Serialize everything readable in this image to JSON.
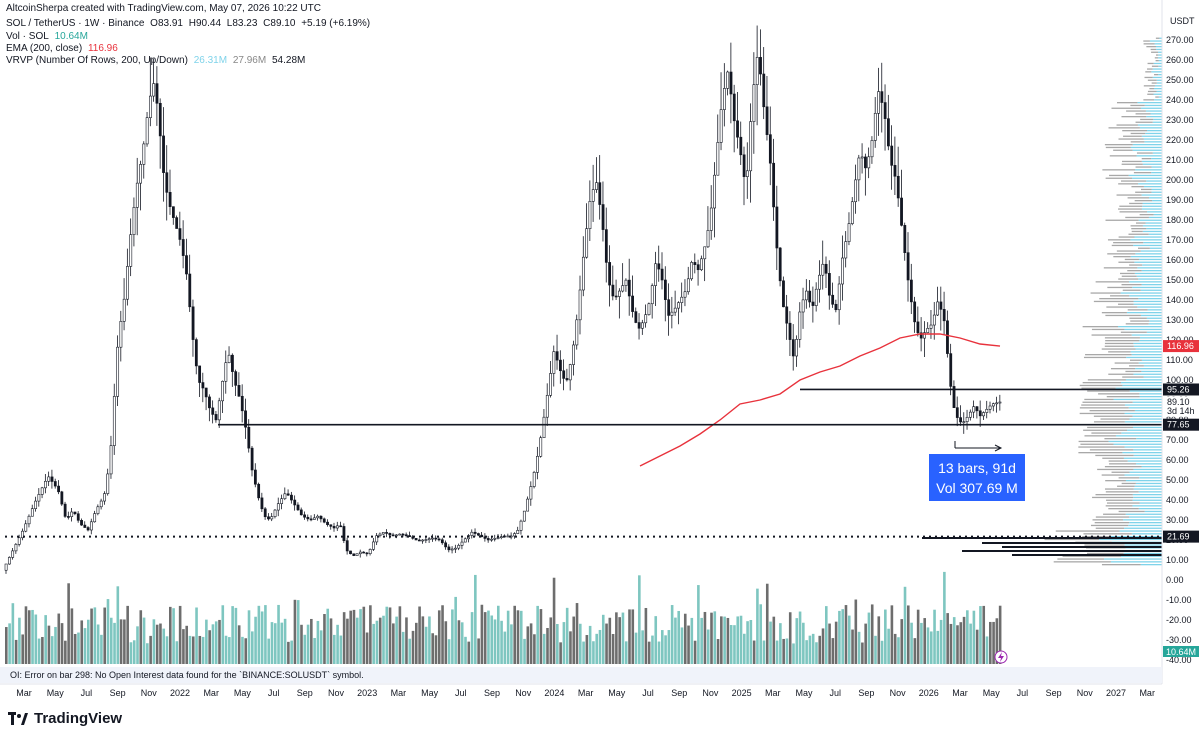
{
  "header": {
    "created_line": "AltcoinSherpa created with TradingView.com, May 07, 2026 10:22 UTC",
    "symbol": "SOL / TetherUS · 1W · Binance",
    "o": "O83.91",
    "h": "H90.44",
    "l": "L83.23",
    "c": "C89.10",
    "chg": "+5.19 (+6.19%)",
    "vol_label": "Vol · SOL",
    "vol_value": "10.64M",
    "ema_label": "EMA (200, close)",
    "ema_value": "116.96",
    "vrvp_label": "VRVP (Number Of Rows, 200, Up/Down)",
    "vrvp_up": "26.31M",
    "vrvp_down": "27.96M",
    "vrvp_total": "54.28M"
  },
  "colors": {
    "ema": "#e8323c",
    "vol_up": "#7ec6c0",
    "vol_down": "#6d6d6d",
    "vrvp_up": "#7fd3ea",
    "vrvp_down": "#a8a8a8",
    "measure_box": "#2962ff",
    "candle": "#131722"
  },
  "chart_data": {
    "type": "candlestick",
    "price_axis": {
      "unit": "USDT",
      "ticks": [
        "270.00",
        "260.00",
        "250.00",
        "240.00",
        "230.00",
        "220.00",
        "210.00",
        "200.00",
        "190.00",
        "180.00",
        "170.00",
        "160.00",
        "150.00",
        "140.00",
        "130.00",
        "120.00",
        "110.00",
        "100.00",
        "90.00",
        "80.00",
        "70.00",
        "60.00",
        "50.00",
        "40.00",
        "30.00",
        "20.00",
        "10.00",
        "0.00",
        "-10.00",
        "-20.00",
        "-30.00",
        "-40.00"
      ],
      "range": [
        -40,
        275
      ]
    },
    "time_axis": {
      "ticks": [
        "Mar",
        "May",
        "Jul",
        "Sep",
        "Nov",
        "2022",
        "Mar",
        "May",
        "Jul",
        "Sep",
        "Nov",
        "2023",
        "Mar",
        "May",
        "Jul",
        "Sep",
        "Nov",
        "2024",
        "Mar",
        "May",
        "Jul",
        "Sep",
        "Nov",
        "2025",
        "Mar",
        "May",
        "Jul",
        "Sep",
        "Nov",
        "2026",
        "Mar",
        "May",
        "Jul",
        "Sep",
        "Nov",
        "2027",
        "Mar"
      ]
    },
    "price_path": [
      [
        0,
        3
      ],
      [
        8,
        8
      ],
      [
        15,
        15
      ],
      [
        25,
        25
      ],
      [
        38,
        40
      ],
      [
        50,
        52
      ],
      [
        60,
        45
      ],
      [
        68,
        30
      ],
      [
        75,
        35
      ],
      [
        82,
        28
      ],
      [
        90,
        25
      ],
      [
        98,
        35
      ],
      [
        106,
        42
      ],
      [
        112,
        60
      ],
      [
        116,
        90
      ],
      [
        120,
        120
      ],
      [
        126,
        140
      ],
      [
        132,
        170
      ],
      [
        138,
        195
      ],
      [
        145,
        215
      ],
      [
        150,
        235
      ],
      [
        155,
        250
      ],
      [
        160,
        235
      ],
      [
        165,
        205
      ],
      [
        170,
        190
      ],
      [
        176,
        180
      ],
      [
        182,
        170
      ],
      [
        188,
        155
      ],
      [
        195,
        120
      ],
      [
        200,
        100
      ],
      [
        206,
        95
      ],
      [
        212,
        85
      ],
      [
        218,
        80
      ],
      [
        224,
        98
      ],
      [
        230,
        115
      ],
      [
        236,
        100
      ],
      [
        242,
        90
      ],
      [
        248,
        75
      ],
      [
        254,
        55
      ],
      [
        260,
        42
      ],
      [
        266,
        32
      ],
      [
        272,
        30
      ],
      [
        280,
        38
      ],
      [
        288,
        44
      ],
      [
        296,
        38
      ],
      [
        304,
        32
      ],
      [
        312,
        30
      ],
      [
        320,
        32
      ],
      [
        328,
        28
      ],
      [
        336,
        26
      ],
      [
        342,
        28
      ],
      [
        348,
        15
      ],
      [
        355,
        12
      ],
      [
        362,
        14
      ],
      [
        370,
        13
      ],
      [
        378,
        22
      ],
      [
        386,
        24
      ],
      [
        394,
        22
      ],
      [
        402,
        23
      ],
      [
        410,
        22
      ],
      [
        418,
        20
      ],
      [
        426,
        20
      ],
      [
        434,
        21
      ],
      [
        442,
        20
      ],
      [
        450,
        15
      ],
      [
        458,
        16
      ],
      [
        466,
        20
      ],
      [
        474,
        24
      ],
      [
        482,
        22
      ],
      [
        490,
        20
      ],
      [
        498,
        21
      ],
      [
        506,
        22
      ],
      [
        514,
        22
      ],
      [
        520,
        25
      ],
      [
        526,
        34
      ],
      [
        532,
        45
      ],
      [
        538,
        58
      ],
      [
        544,
        75
      ],
      [
        550,
        95
      ],
      [
        556,
        115
      ],
      [
        562,
        105
      ],
      [
        568,
        98
      ],
      [
        574,
        112
      ],
      [
        580,
        135
      ],
      [
        586,
        165
      ],
      [
        592,
        190
      ],
      [
        598,
        200
      ],
      [
        604,
        180
      ],
      [
        610,
        150
      ],
      [
        616,
        140
      ],
      [
        622,
        145
      ],
      [
        628,
        150
      ],
      [
        634,
        135
      ],
      [
        640,
        125
      ],
      [
        646,
        130
      ],
      [
        652,
        140
      ],
      [
        658,
        160
      ],
      [
        664,
        150
      ],
      [
        670,
        132
      ],
      [
        676,
        135
      ],
      [
        682,
        140
      ],
      [
        688,
        145
      ],
      [
        694,
        160
      ],
      [
        700,
        155
      ],
      [
        706,
        165
      ],
      [
        712,
        180
      ],
      [
        718,
        210
      ],
      [
        724,
        240
      ],
      [
        730,
        255
      ],
      [
        736,
        230
      ],
      [
        742,
        215
      ],
      [
        748,
        195
      ],
      [
        754,
        240
      ],
      [
        760,
        265
      ],
      [
        766,
        235
      ],
      [
        772,
        210
      ],
      [
        778,
        170
      ],
      [
        784,
        140
      ],
      [
        790,
        125
      ],
      [
        796,
        110
      ],
      [
        802,
        135
      ],
      [
        808,
        145
      ],
      [
        814,
        135
      ],
      [
        820,
        150
      ],
      [
        826,
        160
      ],
      [
        832,
        140
      ],
      [
        838,
        135
      ],
      [
        844,
        160
      ],
      [
        850,
        175
      ],
      [
        856,
        195
      ],
      [
        862,
        215
      ],
      [
        868,
        205
      ],
      [
        874,
        220
      ],
      [
        880,
        245
      ],
      [
        886,
        235
      ],
      [
        892,
        210
      ],
      [
        898,
        200
      ],
      [
        904,
        175
      ],
      [
        910,
        150
      ],
      [
        916,
        130
      ],
      [
        922,
        120
      ],
      [
        928,
        125
      ],
      [
        934,
        128
      ],
      [
        940,
        140
      ],
      [
        946,
        130
      ],
      [
        950,
        110
      ],
      [
        954,
        90
      ],
      [
        958,
        82
      ],
      [
        964,
        78
      ],
      [
        970,
        82
      ],
      [
        976,
        87
      ],
      [
        982,
        82
      ],
      [
        988,
        85
      ],
      [
        994,
        88
      ],
      [
        1002,
        89
      ]
    ],
    "ema_200": [
      [
        640,
        57
      ],
      [
        660,
        62
      ],
      [
        680,
        67
      ],
      [
        700,
        73
      ],
      [
        720,
        80
      ],
      [
        740,
        88
      ],
      [
        760,
        90
      ],
      [
        780,
        93
      ],
      [
        800,
        100
      ],
      [
        820,
        104
      ],
      [
        840,
        107
      ],
      [
        860,
        112
      ],
      [
        880,
        116
      ],
      [
        900,
        121
      ],
      [
        920,
        123
      ],
      [
        940,
        123
      ],
      [
        960,
        121
      ],
      [
        980,
        118
      ],
      [
        1000,
        116.96
      ]
    ],
    "levels": [
      {
        "price": 95.26,
        "label": "95.26",
        "style": "solid",
        "x_start": 800
      },
      {
        "price": 77.65,
        "label": "77.65",
        "style": "solid",
        "x_start": 218
      },
      {
        "price": 21.69,
        "label": "21.69",
        "style": "dotted",
        "x_start": 5
      }
    ],
    "current_price": {
      "price": 89.1,
      "label": "89.10",
      "countdown": "3d 14h"
    },
    "ema_price_label": "116.96",
    "volume_last_label": "10.64M",
    "measurement": {
      "line1": "13 bars, 91d",
      "line2": "Vol 307.69 M"
    }
  },
  "oi_error": "OI: Error on bar 298: No Open Interest data found for the `BINANCE:SOLUSDT` symbol.",
  "brand": {
    "name": "TradingView"
  }
}
